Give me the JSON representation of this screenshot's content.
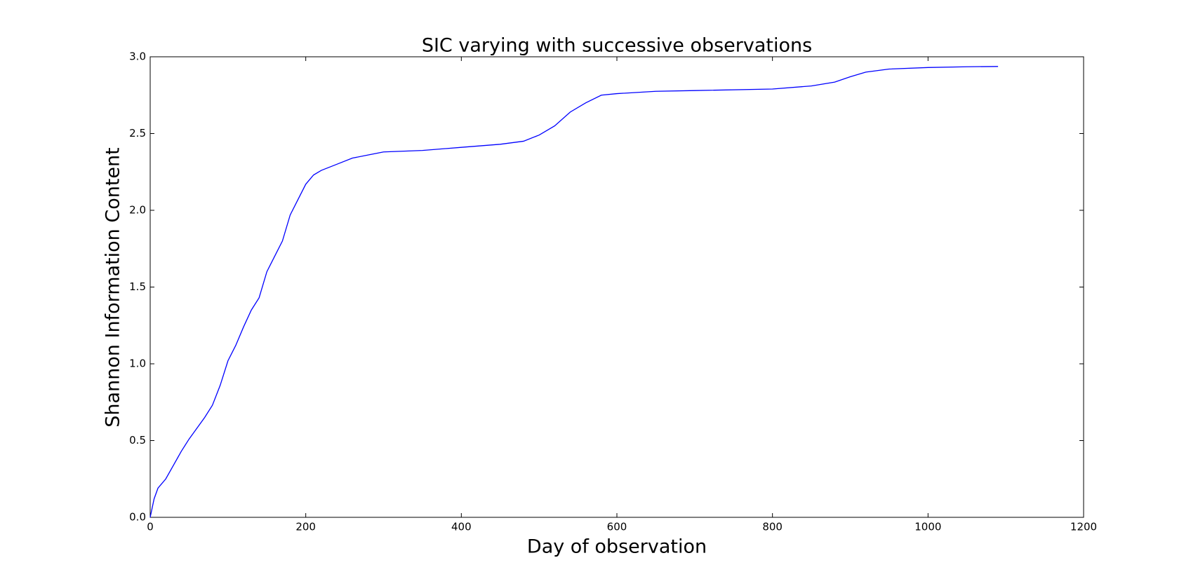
{
  "chart_data": {
    "type": "line",
    "title": "SIC varying with successive observations",
    "x_label": "Day of observation",
    "y_label": "Shannon Information Content",
    "x": [
      0,
      5,
      10,
      20,
      30,
      40,
      50,
      60,
      70,
      80,
      90,
      100,
      110,
      120,
      130,
      140,
      150,
      160,
      170,
      180,
      190,
      200,
      210,
      220,
      240,
      260,
      280,
      300,
      350,
      400,
      450,
      480,
      500,
      520,
      540,
      560,
      580,
      600,
      650,
      700,
      800,
      850,
      880,
      900,
      920,
      950,
      1000,
      1050,
      1090
    ],
    "series": [
      {
        "name": "SIC",
        "color": "#0000ff",
        "values": [
          0,
          0.12,
          0.19,
          0.25,
          0.34,
          0.43,
          0.51,
          0.58,
          0.65,
          0.73,
          0.86,
          1.02,
          1.12,
          1.24,
          1.35,
          1.43,
          1.6,
          1.7,
          1.8,
          1.97,
          2.07,
          2.17,
          2.23,
          2.26,
          2.3,
          2.34,
          2.36,
          2.38,
          2.39,
          2.41,
          2.43,
          2.45,
          2.49,
          2.55,
          2.64,
          2.7,
          2.75,
          2.76,
          2.775,
          2.78,
          2.79,
          2.81,
          2.835,
          2.87,
          2.9,
          2.92,
          2.93,
          2.935,
          2.937
        ]
      }
    ],
    "xlim": [
      0,
      1200
    ],
    "xticks": [
      0,
      200,
      400,
      600,
      800,
      1000,
      1200
    ],
    "ylim": [
      0,
      3
    ],
    "yticks": [
      {
        "value": 0,
        "label": "0.0"
      },
      0.5,
      {
        "value": 1,
        "label": "1.0"
      },
      1.5,
      {
        "value": 2,
        "label": "2.0"
      },
      2.5,
      {
        "value": 3,
        "label": "3.0"
      }
    ]
  }
}
